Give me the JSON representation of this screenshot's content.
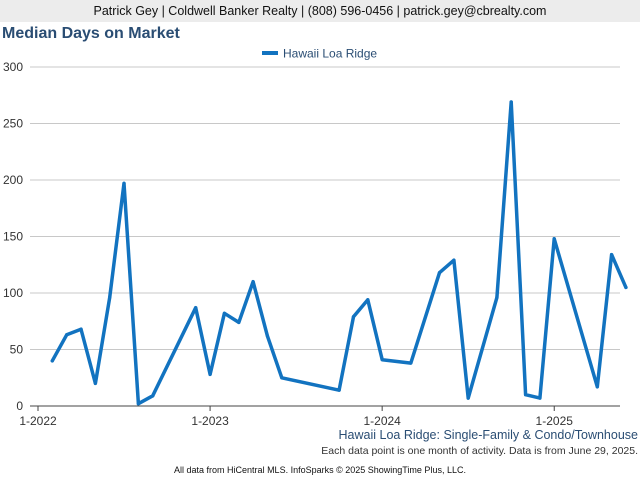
{
  "header": {
    "contact": "Patrick Gey | Coldwell Banker Realty | (808) 596-0456 | patrick.gey@cbrealty.com"
  },
  "page_title": "Median Days on Market",
  "footer": {
    "subtitle": "Hawaii Loa Ridge: Single-Family & Condo/Townhouse",
    "note": "Each data point is one month of activity. Data is from June 29, 2025.",
    "credit": "All data from HiCentral MLS. InfoSparks © 2025 ShowingTime Plus, LLC."
  },
  "colors": {
    "line": "#1273c0",
    "grid": "#c8c8c8",
    "title": "#2a4d73"
  },
  "chart_data": {
    "type": "line",
    "title": "Median Days on Market",
    "legend": "top-center",
    "grid": true,
    "ylim": [
      0,
      300
    ],
    "yticks": [
      "0",
      "50",
      "100",
      "150",
      "200",
      "250",
      "300"
    ],
    "xticks": [
      {
        "label": "1-2022",
        "x": "2022-01"
      },
      {
        "label": "1-2023",
        "x": "2023-01"
      },
      {
        "label": "1-2024",
        "x": "2024-01"
      },
      {
        "label": "1-2025",
        "x": "2025-01"
      }
    ],
    "series": [
      {
        "name": "Hawaii Loa Ridge",
        "points": [
          {
            "x": "2022-02",
            "y": 40
          },
          {
            "x": "2022-03",
            "y": 63
          },
          {
            "x": "2022-04",
            "y": 68
          },
          {
            "x": "2022-05",
            "y": 20
          },
          {
            "x": "2022-06",
            "y": 96
          },
          {
            "x": "2022-07",
            "y": 197
          },
          {
            "x": "2022-08",
            "y": 2
          },
          {
            "x": "2022-09",
            "y": 9
          },
          {
            "x": "2022-12",
            "y": 87
          },
          {
            "x": "2023-01",
            "y": 28
          },
          {
            "x": "2023-02",
            "y": 82
          },
          {
            "x": "2023-03",
            "y": 74
          },
          {
            "x": "2023-04",
            "y": 110
          },
          {
            "x": "2023-05",
            "y": 62
          },
          {
            "x": "2023-06",
            "y": 25
          },
          {
            "x": "2023-10",
            "y": 14
          },
          {
            "x": "2023-11",
            "y": 79
          },
          {
            "x": "2023-12",
            "y": 94
          },
          {
            "x": "2024-01",
            "y": 41
          },
          {
            "x": "2024-03",
            "y": 38
          },
          {
            "x": "2024-05",
            "y": 118
          },
          {
            "x": "2024-06",
            "y": 129
          },
          {
            "x": "2024-07",
            "y": 7
          },
          {
            "x": "2024-09",
            "y": 96
          },
          {
            "x": "2024-10",
            "y": 269
          },
          {
            "x": "2024-11",
            "y": 10
          },
          {
            "x": "2024-12",
            "y": 7
          },
          {
            "x": "2025-01",
            "y": 148
          },
          {
            "x": "2025-04",
            "y": 17
          },
          {
            "x": "2025-05",
            "y": 134
          },
          {
            "x": "2025-06",
            "y": 105
          }
        ]
      }
    ]
  }
}
